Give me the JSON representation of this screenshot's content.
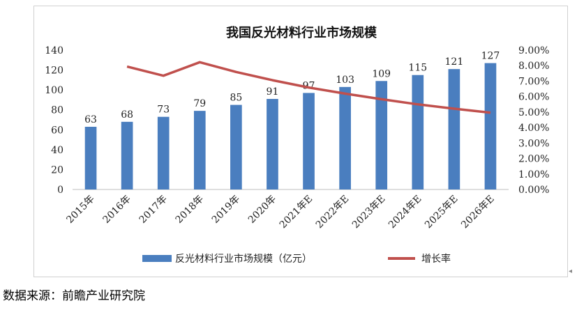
{
  "chart_data": {
    "type": "bar",
    "title": "我国反光材料行业市场规模",
    "categories": [
      "2015年",
      "2016年",
      "2017年",
      "2018年",
      "2019年",
      "2020年",
      "2021年E",
      "2022年E",
      "2023年E",
      "2024年E",
      "2025年E",
      "2026年E"
    ],
    "series": [
      {
        "name": "反光材料行业市场规模（亿元）",
        "type": "bar",
        "axis": "left",
        "color": "#4a7ebf",
        "values": [
          63,
          68,
          73,
          79,
          85,
          91,
          97,
          103,
          109,
          115,
          121,
          127
        ],
        "value_labels": [
          "63",
          "68",
          "73",
          "79",
          "85",
          "91",
          "97",
          "103",
          "109",
          "115",
          "121",
          "127"
        ]
      },
      {
        "name": "增长率",
        "type": "line",
        "axis": "right",
        "color": "#c0504d",
        "values": [
          null,
          0.0794,
          0.0735,
          0.0822,
          0.0759,
          0.0706,
          0.0659,
          0.0619,
          0.0583,
          0.055,
          0.0522,
          0.0496
        ]
      }
    ],
    "y_left": {
      "min": 0,
      "max": 140,
      "ticks": [
        "0",
        "20",
        "40",
        "60",
        "80",
        "100",
        "120",
        "140"
      ]
    },
    "y_right": {
      "min": 0,
      "max": 0.09,
      "ticks": [
        "0.00%",
        "1.00%",
        "2.00%",
        "3.00%",
        "4.00%",
        "5.00%",
        "6.00%",
        "7.00%",
        "8.00%",
        "9.00%"
      ]
    },
    "legend_position": "bottom",
    "grid": false
  },
  "source_note": "数据来源：前瞻产业研究院"
}
